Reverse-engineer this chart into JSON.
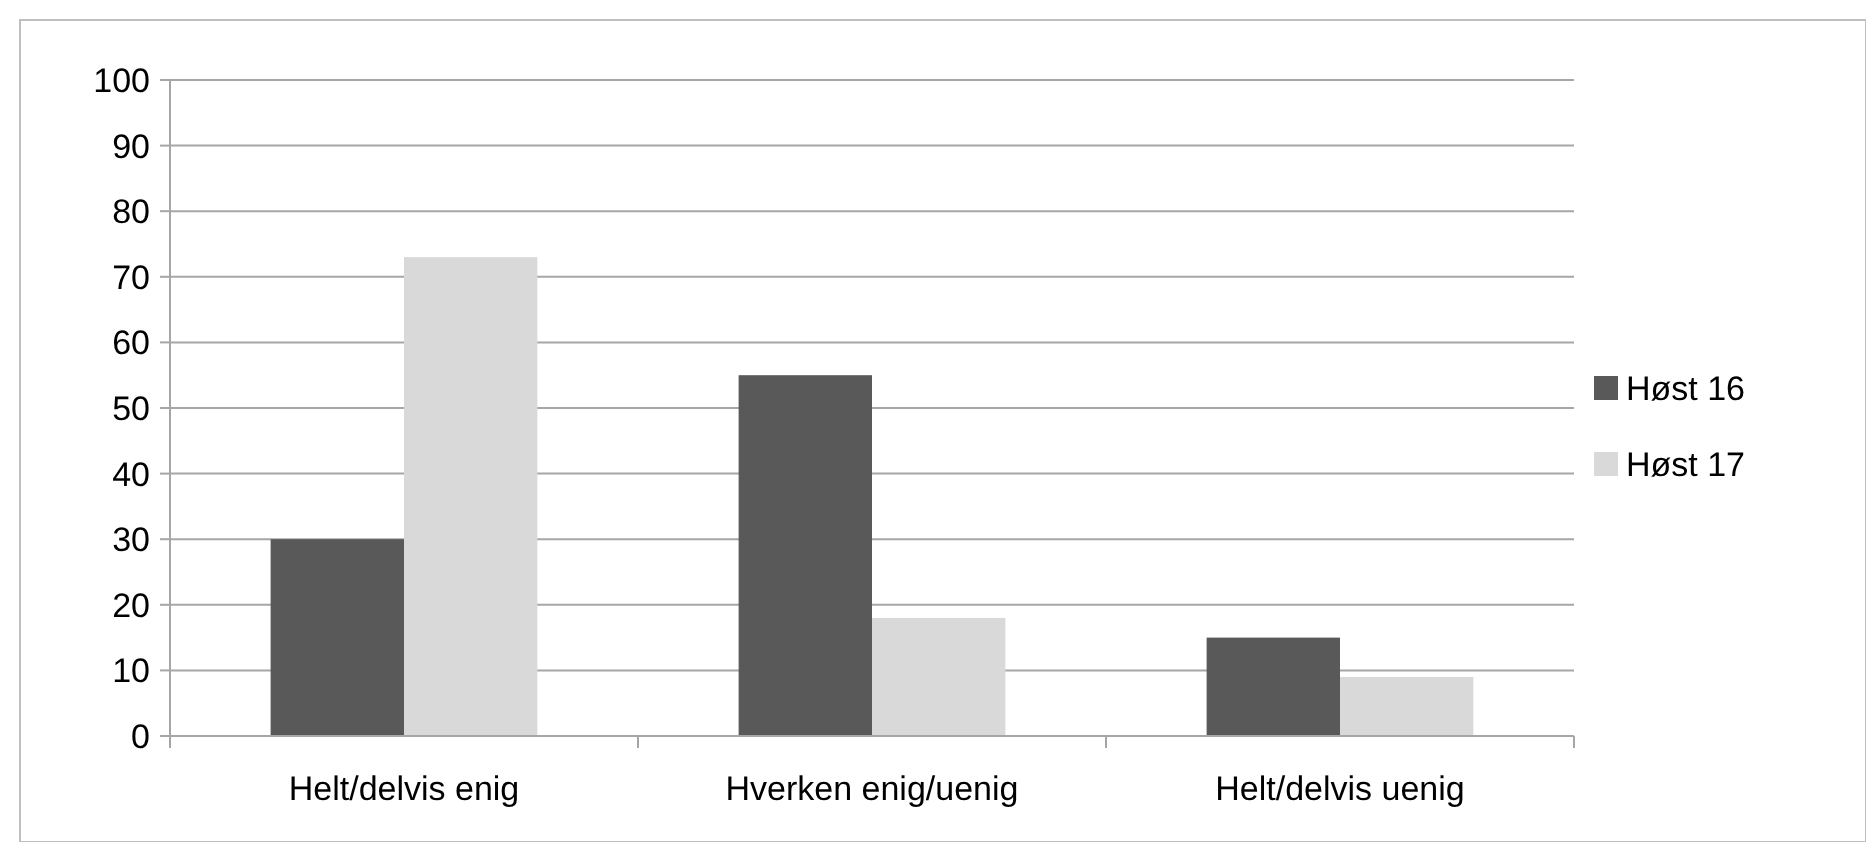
{
  "chart_data": {
    "type": "bar",
    "categories": [
      "Helt/delvis enig",
      "Hverken enig/uenig",
      "Helt/delvis uenig"
    ],
    "series": [
      {
        "name": "Høst 16",
        "color": "#595959",
        "values": [
          30,
          55,
          15
        ]
      },
      {
        "name": "Høst 17",
        "color": "#d9d9d9",
        "values": [
          73,
          18,
          9
        ]
      }
    ],
    "ylim": [
      0,
      100
    ],
    "yticks": [
      0,
      10,
      20,
      30,
      40,
      50,
      60,
      70,
      80,
      90,
      100
    ],
    "grid": "y",
    "legend": "right"
  }
}
